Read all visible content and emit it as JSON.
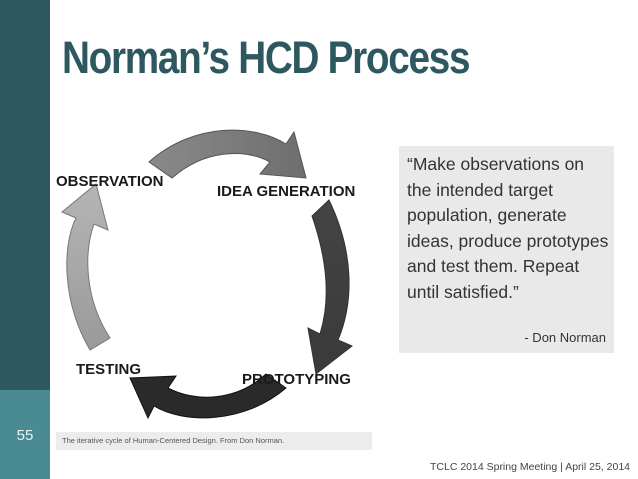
{
  "slide": {
    "number": "55",
    "title": "Norman’s HCD Process",
    "footer": "TCLC 2014 Spring Meeting | April 25, 2014"
  },
  "diagram": {
    "stages": [
      "OBSERVATION",
      "IDEA GENERATION",
      "PROTOTYPING",
      "TESTING"
    ],
    "caption": "The iterative cycle of Human-Centered Design. From Don Norman."
  },
  "quote": {
    "text": "“Make observations on the intended target population, generate ideas, produce prototypes and test them. Repeat until satisfied.”",
    "attribution": "- Don Norman"
  },
  "colors": {
    "sidebar_dark": "#2d5860",
    "sidebar_light": "#4a8a93",
    "title": "#2d5860",
    "quote_background": "#e9e9e9"
  }
}
